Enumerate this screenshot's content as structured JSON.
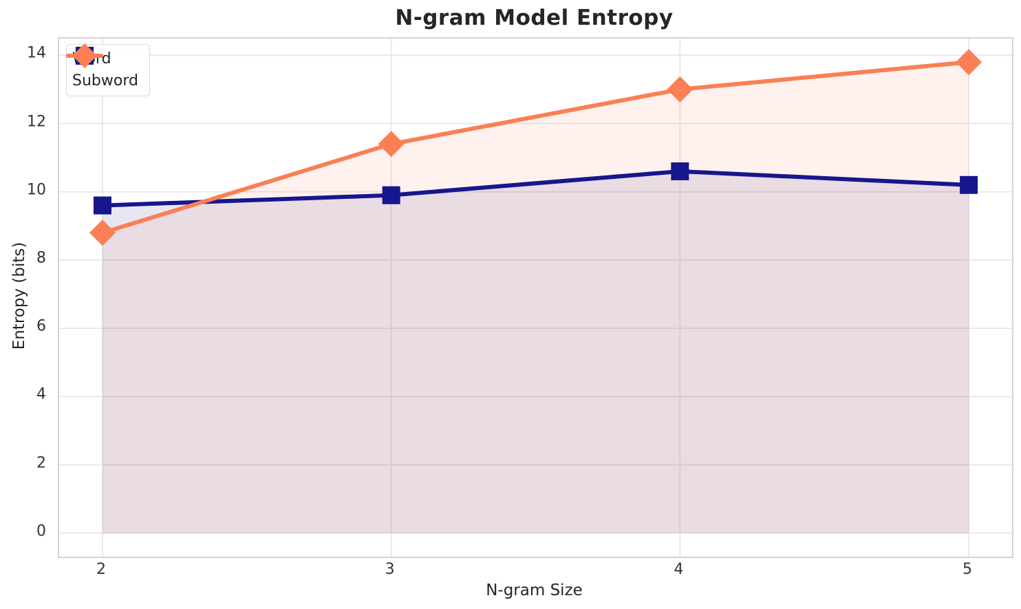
{
  "chart_data": {
    "type": "line",
    "title": "N-gram Model Entropy",
    "xlabel": "N-gram Size",
    "ylabel": "Entropy (bits)",
    "x": [
      2,
      3,
      4,
      5
    ],
    "series": [
      {
        "name": "Word",
        "values": [
          9.6,
          9.9,
          10.6,
          10.2
        ],
        "color": "#16168d",
        "marker": "square"
      },
      {
        "name": "Subword",
        "values": [
          8.8,
          11.4,
          13.0,
          13.8
        ],
        "color": "#fb7f54",
        "marker": "diamond"
      }
    ],
    "x_ticks": [
      2,
      3,
      4,
      5
    ],
    "y_ticks": [
      0,
      2,
      4,
      6,
      8,
      10,
      12,
      14
    ],
    "xlim": [
      1.85,
      5.15
    ],
    "ylim": [
      -0.69,
      14.49
    ],
    "fill_to_zero": true,
    "fill_alpha": 0.1,
    "grid": true,
    "grid_color": "#e7e7e7",
    "spine_color": "#d4d4d4",
    "legend_position": "upper-left",
    "line_width": 6
  }
}
